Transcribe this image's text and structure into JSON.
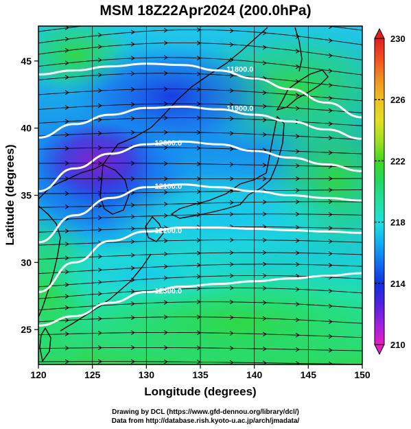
{
  "title": "MSM 18Z22Apr2024 (200.0hPa)",
  "axes": {
    "xlabel": "Longitude (degrees)",
    "ylabel": "Latitude  (degrees)",
    "xticks": [
      "120",
      "125",
      "130",
      "135",
      "140",
      "145",
      "150"
    ],
    "yticks": [
      "25",
      "30",
      "35",
      "40",
      "45"
    ],
    "xlim": [
      120,
      150
    ],
    "ylim": [
      22.4,
      47.6
    ]
  },
  "colorbar": {
    "ticks": [
      "210",
      "214",
      "218",
      "222",
      "226",
      "230"
    ],
    "range": [
      210,
      230
    ],
    "colors": [
      "#e020c0",
      "#a020e0",
      "#5020e0",
      "#1030e0",
      "#1070f0",
      "#10b0f0",
      "#20e0e0",
      "#20e0a0",
      "#20d860",
      "#40d820",
      "#a0e020",
      "#e0e020",
      "#f0c020",
      "#f09020",
      "#f05020",
      "#e02020"
    ]
  },
  "contours": [
    {
      "label": "11800.0",
      "lat": [
        44.0,
        44.3,
        44.6,
        44.8,
        44.7,
        44.3,
        43.7,
        42.9,
        41.9,
        40.8
      ]
    },
    {
      "label": "11900.0",
      "lat": [
        39.3,
        40.3,
        41.0,
        41.5,
        41.6,
        41.4,
        41.0,
        40.5,
        39.9,
        39.2
      ]
    },
    {
      "label": "12000.0",
      "lat": [
        35.3,
        37.0,
        38.1,
        38.8,
        39.0,
        38.8,
        38.3,
        37.8,
        37.3,
        36.8
      ]
    },
    {
      "label": "12100.0",
      "lat": [
        31.5,
        33.5,
        34.8,
        35.6,
        35.8,
        35.6,
        35.3,
        35.0,
        34.8,
        34.6
      ]
    },
    {
      "label": "12200.0",
      "lat": [
        27.8,
        30.0,
        31.6,
        32.3,
        32.6,
        32.6,
        32.5,
        32.4,
        32.3,
        32.2
      ]
    },
    {
      "label": "12300.0",
      "lat": [
        25.3,
        26.0,
        27.0,
        27.8,
        28.2,
        28.4,
        28.6,
        28.8,
        29.0,
        29.2
      ]
    }
  ],
  "footer": {
    "line1": "Drawing by DCL (https://www.gfd-dennou.org/library/dcl/)",
    "line2": "Data from http://database.rish.kyoto-u.ac.jp/arch/jmadata/"
  }
}
